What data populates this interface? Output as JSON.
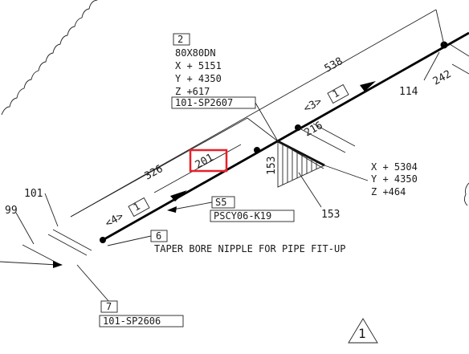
{
  "fitting_2": {
    "tag": "2",
    "size": "80X80DN",
    "x": "X + 5151",
    "y": "Y + 4350",
    "z": "Z +617",
    "line": "101-SP2607"
  },
  "point_right": {
    "x": "X + 5304",
    "y": "Y + 4350",
    "z": "Z +464"
  },
  "dimensions": {
    "d538": "538",
    "d326": "326",
    "d201": "201",
    "d216": "216",
    "d153a": "153",
    "d153b": "153",
    "d114": "114",
    "d242": "242",
    "d101": "101",
    "d99": "99"
  },
  "segments": {
    "seg3": "<3>",
    "seg3_tag": "1",
    "seg4": "<4>",
    "seg4_tag": "1"
  },
  "support": {
    "tag": "S5",
    "code": "PSCY06-K19"
  },
  "item_6": {
    "tag": "6",
    "note": "TAPER BORE NIPPLE FOR PIPE FIT-UP"
  },
  "item_7": {
    "tag": "7",
    "line": "101-SP2606"
  },
  "revision": {
    "mark": "1"
  },
  "colors": {
    "highlight": "#e8202a",
    "ink": "#222222"
  }
}
